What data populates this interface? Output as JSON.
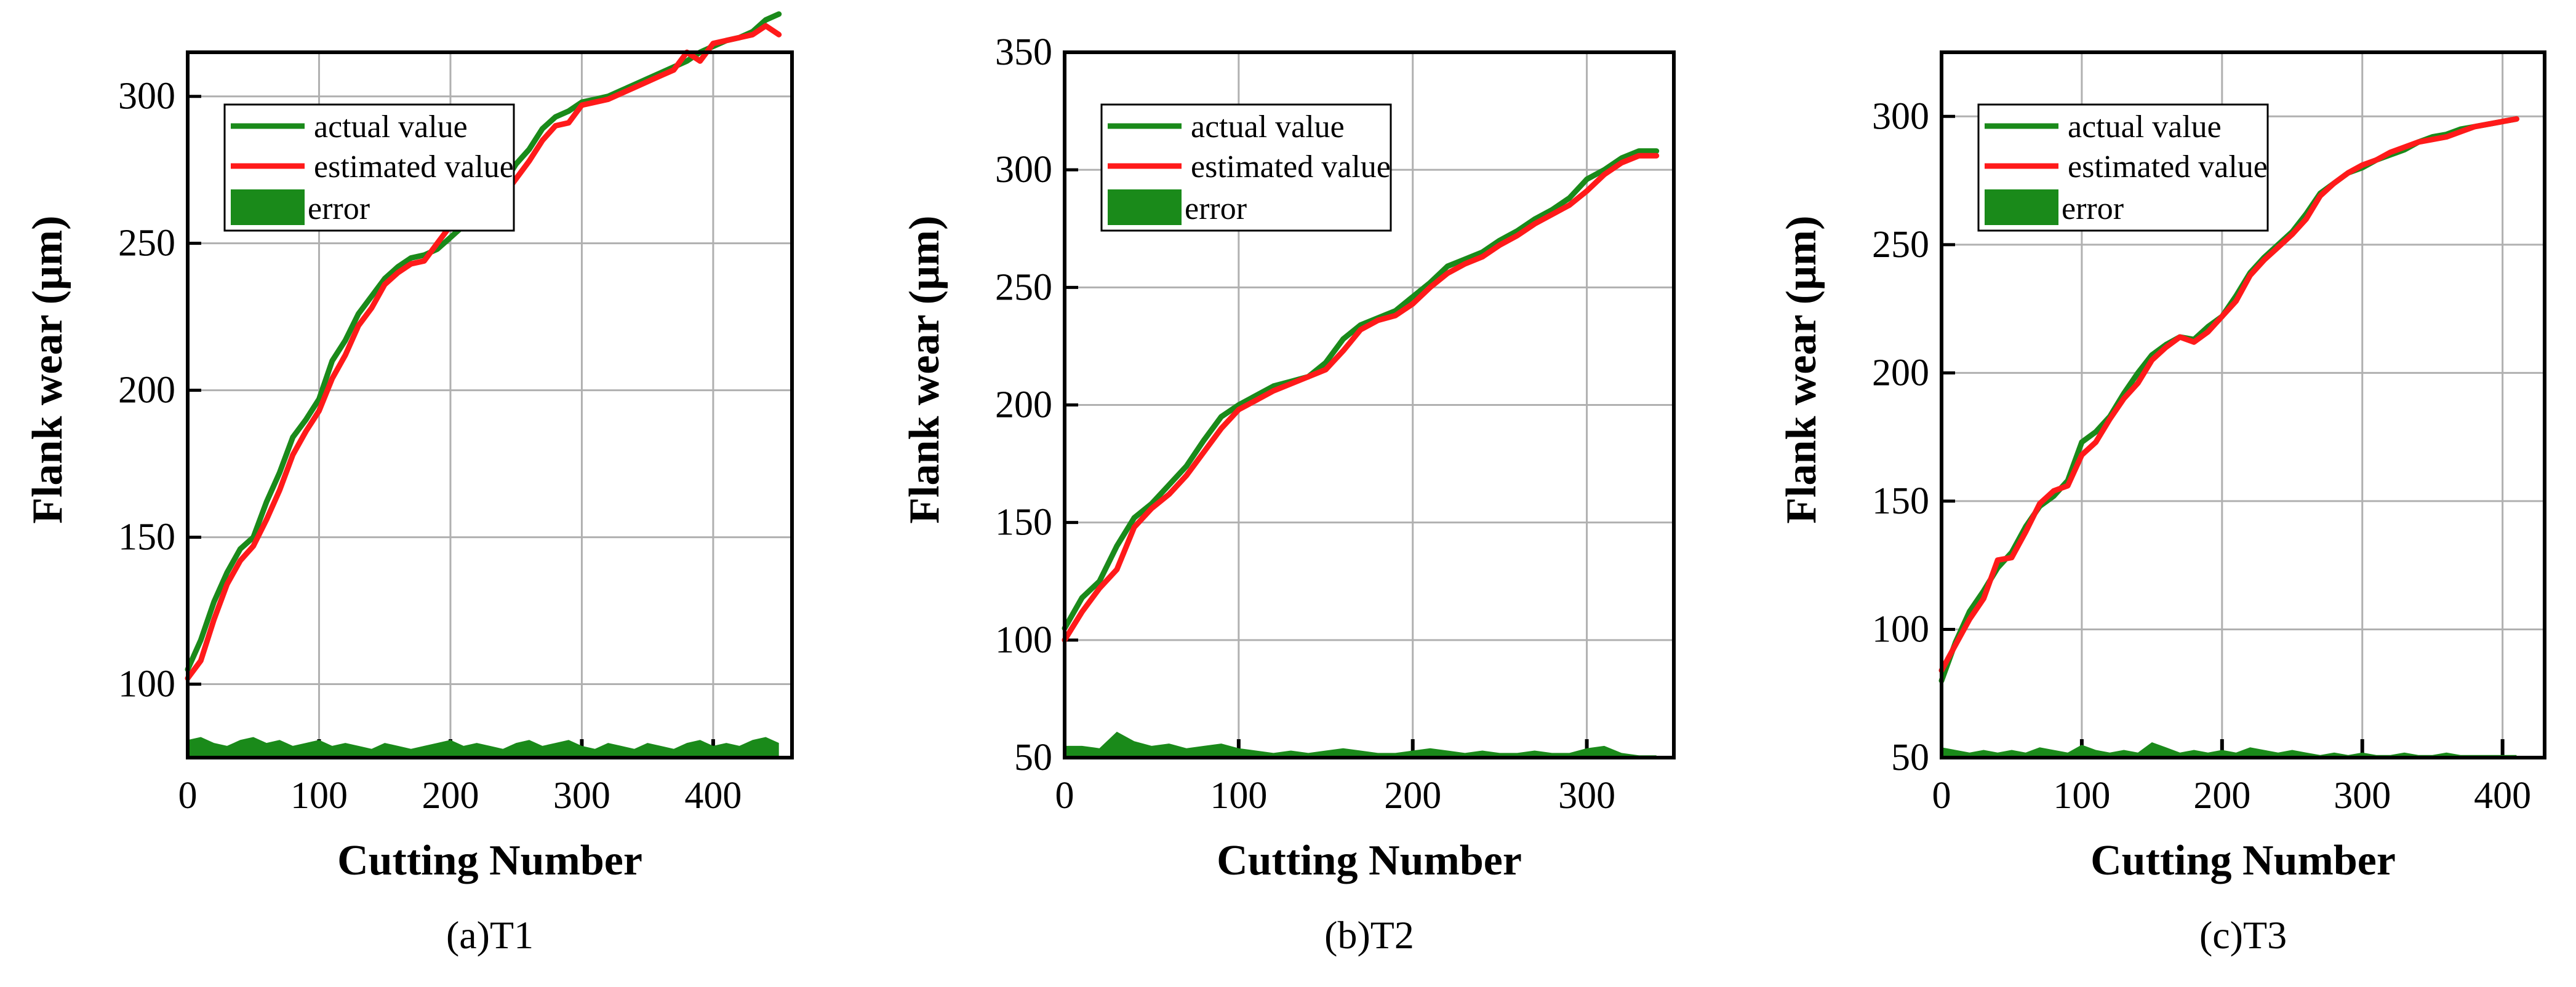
{
  "figure": {
    "colors": {
      "actual": "#1a8a1a",
      "estimated": "#ff1a1a",
      "error": "#1a8a1a",
      "grid": "#b0b0b0",
      "frame": "#000000"
    }
  },
  "chart_data": [
    {
      "type": "line",
      "caption": "(a)T1",
      "xlabel": "Cutting Number",
      "ylabel": "Flank wear (μm)",
      "xlim": [
        0,
        460
      ],
      "ylim": [
        75,
        315
      ],
      "xticks": [
        0,
        100,
        200,
        300,
        400
      ],
      "yticks": [
        100,
        150,
        200,
        250,
        300
      ],
      "grid": true,
      "legend": {
        "position": "top-left",
        "entries": [
          "actual value",
          "estimated value",
          "error"
        ]
      },
      "series": [
        {
          "name": "actual value",
          "kind": "line",
          "x": [
            0,
            10,
            20,
            30,
            40,
            50,
            60,
            70,
            80,
            90,
            100,
            110,
            120,
            130,
            140,
            150,
            160,
            170,
            180,
            190,
            200,
            210,
            220,
            230,
            240,
            250,
            260,
            270,
            280,
            290,
            300,
            310,
            320,
            330,
            340,
            350,
            360,
            370,
            380,
            390,
            400,
            410,
            420,
            430,
            440,
            450
          ],
          "y": [
            105,
            115,
            128,
            138,
            146,
            150,
            162,
            172,
            184,
            190,
            197,
            210,
            217,
            226,
            232,
            238,
            242,
            245,
            246,
            248,
            252,
            256,
            261,
            265,
            270,
            277,
            282,
            289,
            293,
            295,
            298,
            299,
            300,
            302,
            304,
            306,
            308,
            310,
            312,
            315,
            317,
            319,
            320,
            322,
            326,
            328
          ]
        },
        {
          "name": "estimated value",
          "kind": "line",
          "x": [
            0,
            10,
            20,
            30,
            40,
            50,
            60,
            70,
            80,
            90,
            100,
            110,
            120,
            130,
            140,
            150,
            160,
            170,
            180,
            190,
            200,
            210,
            220,
            230,
            240,
            250,
            260,
            270,
            280,
            290,
            300,
            310,
            320,
            330,
            340,
            350,
            360,
            370,
            380,
            390,
            400,
            410,
            420,
            430,
            440,
            450
          ],
          "y": [
            102,
            108,
            122,
            134,
            142,
            147,
            156,
            166,
            178,
            186,
            193,
            204,
            212,
            222,
            228,
            236,
            240,
            243,
            244,
            250,
            256,
            258,
            264,
            262,
            266,
            272,
            278,
            285,
            290,
            291,
            297,
            298,
            299,
            301,
            303,
            305,
            307,
            309,
            315,
            312,
            318,
            319,
            320,
            321,
            324,
            321
          ]
        },
        {
          "name": "error",
          "kind": "area",
          "x": [
            0,
            10,
            20,
            30,
            40,
            50,
            60,
            70,
            80,
            90,
            100,
            110,
            120,
            130,
            140,
            150,
            160,
            170,
            180,
            190,
            200,
            210,
            220,
            230,
            240,
            250,
            260,
            270,
            280,
            290,
            300,
            310,
            320,
            330,
            340,
            350,
            360,
            370,
            380,
            390,
            400,
            410,
            420,
            430,
            440,
            450
          ],
          "y": [
            81,
            82,
            80,
            79,
            81,
            82,
            80,
            81,
            79,
            80,
            81,
            79,
            80,
            79,
            78,
            80,
            79,
            78,
            79,
            80,
            81,
            79,
            80,
            79,
            78,
            80,
            81,
            79,
            80,
            81,
            79,
            78,
            80,
            79,
            78,
            80,
            79,
            78,
            80,
            81,
            79,
            80,
            79,
            81,
            82,
            80
          ]
        }
      ]
    },
    {
      "type": "line",
      "caption": "(b)T2",
      "xlabel": "Cutting Number",
      "ylabel": "Flank wear (μm)",
      "xlim": [
        0,
        350
      ],
      "ylim": [
        50,
        350
      ],
      "xticks": [
        0,
        100,
        200,
        300
      ],
      "yticks": [
        50,
        100,
        150,
        200,
        250,
        300,
        350
      ],
      "grid": true,
      "legend": {
        "position": "top-left",
        "entries": [
          "actual value",
          "estimated value",
          "error"
        ]
      },
      "series": [
        {
          "name": "actual value",
          "kind": "line",
          "x": [
            0,
            10,
            20,
            30,
            40,
            50,
            60,
            70,
            80,
            90,
            100,
            110,
            120,
            130,
            140,
            150,
            160,
            170,
            180,
            190,
            200,
            210,
            220,
            230,
            240,
            250,
            260,
            270,
            280,
            290,
            300,
            310,
            320,
            330,
            340
          ],
          "y": [
            105,
            118,
            125,
            140,
            152,
            158,
            166,
            174,
            185,
            195,
            200,
            204,
            208,
            210,
            212,
            218,
            228,
            234,
            237,
            240,
            246,
            252,
            259,
            262,
            265,
            270,
            274,
            279,
            283,
            288,
            296,
            300,
            305,
            308,
            308
          ]
        },
        {
          "name": "estimated value",
          "kind": "line",
          "x": [
            0,
            10,
            20,
            30,
            40,
            50,
            60,
            70,
            80,
            90,
            100,
            110,
            120,
            130,
            140,
            150,
            160,
            170,
            180,
            190,
            200,
            210,
            220,
            230,
            240,
            250,
            260,
            270,
            280,
            290,
            300,
            310,
            320,
            330,
            340
          ],
          "y": [
            100,
            112,
            122,
            130,
            148,
            156,
            162,
            170,
            180,
            190,
            198,
            202,
            206,
            209,
            212,
            215,
            223,
            232,
            236,
            238,
            243,
            250,
            256,
            260,
            263,
            268,
            272,
            277,
            281,
            285,
            291,
            298,
            303,
            306,
            306
          ]
        },
        {
          "name": "error",
          "kind": "area",
          "x": [
            0,
            10,
            20,
            30,
            40,
            50,
            60,
            70,
            80,
            90,
            100,
            110,
            120,
            130,
            140,
            150,
            160,
            170,
            180,
            190,
            200,
            210,
            220,
            230,
            240,
            250,
            260,
            270,
            280,
            290,
            300,
            310,
            320,
            330,
            340
          ],
          "y": [
            55,
            55,
            54,
            61,
            57,
            55,
            56,
            54,
            55,
            56,
            54,
            53,
            52,
            53,
            52,
            53,
            54,
            53,
            52,
            52,
            53,
            54,
            53,
            52,
            53,
            52,
            52,
            53,
            52,
            52,
            54,
            55,
            52,
            51,
            51
          ]
        }
      ]
    },
    {
      "type": "line",
      "caption": "(c)T3",
      "xlabel": "Cutting Number",
      "ylabel": "Flank wear (μm)",
      "xlim": [
        0,
        430
      ],
      "ylim": [
        50,
        325
      ],
      "xticks": [
        0,
        100,
        200,
        300,
        400
      ],
      "yticks": [
        50,
        100,
        150,
        200,
        250,
        300
      ],
      "grid": true,
      "legend": {
        "position": "top-left",
        "entries": [
          "actual value",
          "estimated value",
          "error"
        ]
      },
      "series": [
        {
          "name": "actual value",
          "kind": "line",
          "x": [
            0,
            10,
            20,
            30,
            40,
            50,
            60,
            70,
            80,
            90,
            100,
            110,
            120,
            130,
            140,
            150,
            160,
            170,
            180,
            190,
            200,
            210,
            220,
            230,
            240,
            250,
            260,
            270,
            280,
            290,
            300,
            310,
            320,
            330,
            340,
            350,
            360,
            370,
            380,
            390,
            400,
            410
          ],
          "y": [
            80,
            95,
            107,
            115,
            124,
            130,
            140,
            148,
            152,
            158,
            173,
            177,
            183,
            192,
            200,
            207,
            211,
            214,
            213,
            218,
            222,
            230,
            239,
            245,
            250,
            255,
            262,
            270,
            274,
            278,
            280,
            283,
            285,
            287,
            290,
            292,
            293,
            295,
            296,
            297,
            298,
            299
          ]
        },
        {
          "name": "estimated value",
          "kind": "line",
          "x": [
            0,
            10,
            20,
            30,
            40,
            50,
            60,
            70,
            80,
            90,
            100,
            110,
            120,
            130,
            140,
            150,
            160,
            170,
            180,
            190,
            200,
            210,
            220,
            230,
            240,
            250,
            260,
            270,
            280,
            290,
            300,
            310,
            320,
            330,
            340,
            350,
            360,
            370,
            380,
            390,
            400,
            410
          ],
          "y": [
            84,
            94,
            104,
            112,
            127,
            128,
            138,
            149,
            154,
            156,
            168,
            173,
            182,
            190,
            196,
            205,
            210,
            214,
            212,
            216,
            222,
            228,
            238,
            244,
            249,
            254,
            260,
            269,
            274,
            278,
            281,
            283,
            286,
            288,
            290,
            291,
            292,
            294,
            296,
            297,
            298,
            299
          ]
        },
        {
          "name": "error",
          "kind": "area",
          "x": [
            0,
            10,
            20,
            30,
            40,
            50,
            60,
            70,
            80,
            90,
            100,
            110,
            120,
            130,
            140,
            150,
            160,
            170,
            180,
            190,
            200,
            210,
            220,
            230,
            240,
            250,
            260,
            270,
            280,
            290,
            300,
            310,
            320,
            330,
            340,
            350,
            360,
            370,
            380,
            390,
            400,
            410
          ],
          "y": [
            54,
            53,
            52,
            53,
            52,
            53,
            52,
            54,
            53,
            52,
            55,
            53,
            52,
            53,
            52,
            56,
            54,
            52,
            53,
            52,
            53,
            52,
            54,
            53,
            52,
            53,
            52,
            51,
            52,
            51,
            52,
            51,
            51,
            52,
            51,
            51,
            52,
            51,
            51,
            51,
            51,
            51
          ]
        }
      ]
    }
  ]
}
